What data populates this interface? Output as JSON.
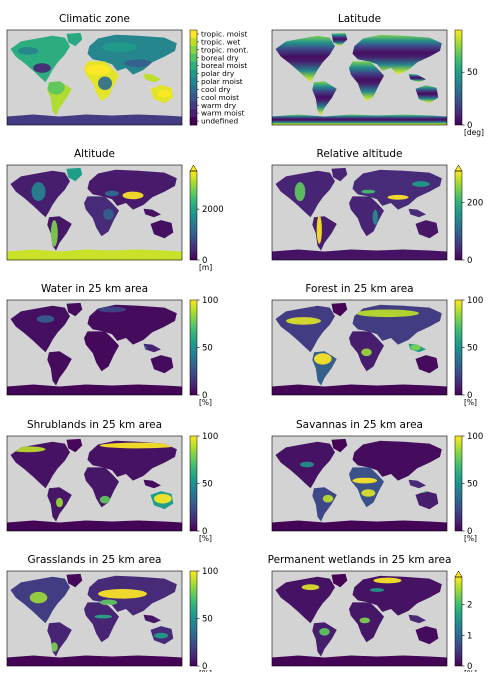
{
  "chart_data": [
    {
      "type": "heatmap",
      "title": "Climatic zone",
      "colorbar": {
        "kind": "categorical",
        "categories": [
          "tropic. moist",
          "tropic. wet",
          "tropic. mont.",
          "boreal dry",
          "boreal moist",
          "polar dry",
          "polar moist",
          "cool dry",
          "cool moist",
          "warm dry",
          "warm moist",
          "undefined"
        ],
        "unit": ""
      },
      "map_pattern": "zones"
    },
    {
      "type": "heatmap",
      "title": "Latitude",
      "colorbar": {
        "kind": "continuous",
        "range": [
          0,
          90
        ],
        "ticks": [
          0,
          50
        ],
        "unit": "[deg]",
        "extend": "none"
      },
      "map_pattern": "latitude"
    },
    {
      "type": "heatmap",
      "title": "Altitude",
      "colorbar": {
        "kind": "continuous",
        "range": [
          0,
          3500
        ],
        "ticks": [
          0,
          2000
        ],
        "unit": "[m]",
        "extend": "max"
      },
      "map_pattern": "altitude"
    },
    {
      "type": "heatmap",
      "title": "Relative altitude",
      "colorbar": {
        "kind": "continuous",
        "range": [
          0,
          310
        ],
        "ticks": [
          0,
          200
        ],
        "unit": "",
        "extend": "max"
      },
      "map_pattern": "relalt"
    },
    {
      "type": "heatmap",
      "title": "Water in 25 km area",
      "colorbar": {
        "kind": "continuous",
        "range": [
          0,
          100
        ],
        "ticks": [
          0,
          50,
          100
        ],
        "unit": "[%]",
        "extend": "none"
      },
      "map_pattern": "water"
    },
    {
      "type": "heatmap",
      "title": "Forest in 25 km area",
      "colorbar": {
        "kind": "continuous",
        "range": [
          0,
          100
        ],
        "ticks": [
          0,
          50,
          100
        ],
        "unit": "[%]",
        "extend": "none"
      },
      "map_pattern": "forest"
    },
    {
      "type": "heatmap",
      "title": "Shrublands in 25 km area",
      "colorbar": {
        "kind": "continuous",
        "range": [
          0,
          100
        ],
        "ticks": [
          0,
          50,
          100
        ],
        "unit": "[%]",
        "extend": "none"
      },
      "map_pattern": "shrub"
    },
    {
      "type": "heatmap",
      "title": "Savannas in 25 km area",
      "colorbar": {
        "kind": "continuous",
        "range": [
          0,
          100
        ],
        "ticks": [
          0,
          50,
          100
        ],
        "unit": "[%]",
        "extend": "none"
      },
      "map_pattern": "savanna"
    },
    {
      "type": "heatmap",
      "title": "Grasslands in 25 km area",
      "colorbar": {
        "kind": "continuous",
        "range": [
          0,
          100
        ],
        "ticks": [
          0,
          50,
          100
        ],
        "unit": "[%]",
        "extend": "none"
      },
      "map_pattern": "grass"
    },
    {
      "type": "heatmap",
      "title": "Permanent wetlands in 25 km area",
      "colorbar": {
        "kind": "continuous",
        "range": [
          0,
          2.9
        ],
        "ticks": [
          0,
          1,
          2
        ],
        "unit": "[%]",
        "extend": "max"
      },
      "map_pattern": "wetland"
    }
  ],
  "colors": {
    "ocean": "#d3d3d3",
    "viridis": [
      "#440154",
      "#482878",
      "#3e4989",
      "#31688e",
      "#26828e",
      "#1f9e89",
      "#35b779",
      "#6ece58",
      "#b5de2b",
      "#fde725"
    ]
  }
}
